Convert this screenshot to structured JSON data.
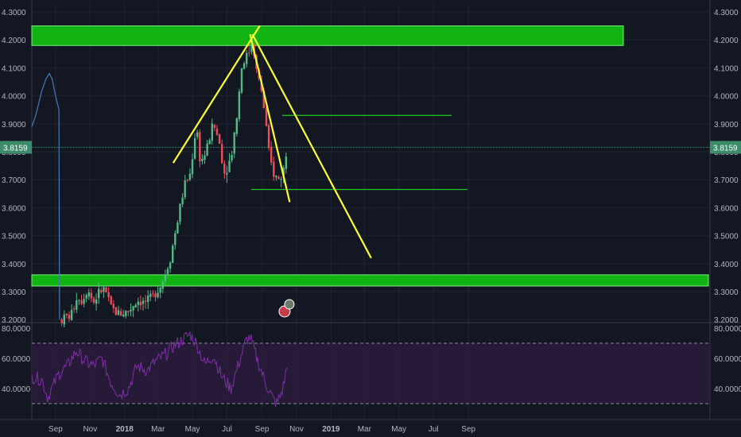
{
  "colors": {
    "background": "#131722",
    "grid": "#1f2433",
    "axis_text": "#b2b5be",
    "candle_up": "#53b987",
    "candle_down": "#eb4d5c",
    "zone_green": "#11c211",
    "trendline_yellow": "#ffff33",
    "level_green": "#21c821",
    "rsi_line": "#7e2fa6",
    "rsi_band": "#2b1b3c",
    "price_badge": "#3c8b6a",
    "blue_line": "#4a78b8"
  },
  "price_label": "3.8159",
  "x_axis_labels": [
    "Sep",
    "Nov",
    "2018",
    "Mar",
    "May",
    "Jul",
    "Sep",
    "Nov",
    "2019",
    "Mar",
    "May",
    "Jul",
    "Sep"
  ],
  "chart_data": [
    {
      "type": "candlestick",
      "y_ticks": [
        "4.3000",
        "4.2000",
        "4.1000",
        "4.0000",
        "3.9000",
        "3.8000",
        "3.7000",
        "3.6000",
        "3.5000",
        "3.4000",
        "3.3000",
        "3.2000"
      ],
      "ylim": [
        3.19,
        4.305
      ],
      "grid": true,
      "current_price": 3.8159,
      "zones": [
        {
          "name": "resistance-zone",
          "from": 4.18,
          "to": 4.25
        },
        {
          "name": "support-zone",
          "from": 3.32,
          "to": 3.36
        }
      ],
      "levels": [
        3.93,
        3.665
      ],
      "price_path": [
        {
          "x": "2017-10-10",
          "y": 3.2
        },
        {
          "x": "2017-10-28",
          "y": 3.22
        },
        {
          "x": "2017-11-05",
          "y": 3.28
        },
        {
          "x": "2017-11-15",
          "y": 3.27
        },
        {
          "x": "2017-11-25",
          "y": 3.31
        },
        {
          "x": "2017-12-05",
          "y": 3.26
        },
        {
          "x": "2017-12-15",
          "y": 3.3
        },
        {
          "x": "2017-12-25",
          "y": 3.31
        },
        {
          "x": "2018-01-05",
          "y": 3.24
        },
        {
          "x": "2018-01-20",
          "y": 3.22
        },
        {
          "x": "2018-02-05",
          "y": 3.23
        },
        {
          "x": "2018-02-20",
          "y": 3.27
        },
        {
          "x": "2018-03-05",
          "y": 3.26
        },
        {
          "x": "2018-03-20",
          "y": 3.28
        },
        {
          "x": "2018-04-05",
          "y": 3.33
        },
        {
          "x": "2018-04-20",
          "y": 3.42
        },
        {
          "x": "2018-05-05",
          "y": 3.58
        },
        {
          "x": "2018-05-15",
          "y": 3.68
        },
        {
          "x": "2018-05-25",
          "y": 3.72
        },
        {
          "x": "2018-06-05",
          "y": 3.9
        },
        {
          "x": "2018-06-12",
          "y": 3.76
        },
        {
          "x": "2018-06-22",
          "y": 3.8
        },
        {
          "x": "2018-07-05",
          "y": 3.9
        },
        {
          "x": "2018-07-15",
          "y": 3.84
        },
        {
          "x": "2018-07-25",
          "y": 3.72
        },
        {
          "x": "2018-08-05",
          "y": 3.78
        },
        {
          "x": "2018-08-15",
          "y": 3.92
        },
        {
          "x": "2018-08-25",
          "y": 4.12
        },
        {
          "x": "2018-09-05",
          "y": 4.15
        },
        {
          "x": "2018-09-12",
          "y": 4.2
        },
        {
          "x": "2018-09-20",
          "y": 4.08
        },
        {
          "x": "2018-09-28",
          "y": 4.02
        },
        {
          "x": "2018-10-05",
          "y": 3.92
        },
        {
          "x": "2018-10-12",
          "y": 3.78
        },
        {
          "x": "2018-10-20",
          "y": 3.72
        },
        {
          "x": "2018-10-28",
          "y": 3.7
        },
        {
          "x": "2018-11-05",
          "y": 3.72
        },
        {
          "x": "2018-11-12",
          "y": 3.82
        }
      ],
      "blue_line": [
        {
          "x": "2017-08-18",
          "y": 3.89
        },
        {
          "x": "2017-08-25",
          "y": 3.93
        },
        {
          "x": "2017-09-05",
          "y": 4.02
        },
        {
          "x": "2017-09-12",
          "y": 4.06
        },
        {
          "x": "2017-09-18",
          "y": 4.08
        },
        {
          "x": "2017-09-23",
          "y": 4.06
        },
        {
          "x": "2017-09-29",
          "y": 4.0
        },
        {
          "x": "2017-10-05",
          "y": 3.95
        },
        {
          "x": "2017-10-06",
          "y": 3.2
        }
      ],
      "trendlines": [
        {
          "from": {
            "x": "2018-04-25",
            "y": 3.76
          },
          "to": {
            "x": "2018-09-25",
            "y": 4.25
          }
        },
        {
          "from": {
            "x": "2018-09-08",
            "y": 4.22
          },
          "to": {
            "x": "2018-11-17",
            "y": 3.62
          }
        },
        {
          "from": {
            "x": "2018-09-12",
            "y": 4.22
          },
          "to": {
            "x": "2019-04-10",
            "y": 3.42
          }
        }
      ]
    },
    {
      "type": "line",
      "name": "RSI",
      "y_ticks": [
        "80.0000",
        "60.0000",
        "40.0000"
      ],
      "ylim": [
        26,
        82
      ],
      "band": [
        30,
        70
      ],
      "values": [
        {
          "x": "2017-08-18",
          "y": 48
        },
        {
          "x": "2017-09-05",
          "y": 46
        },
        {
          "x": "2017-09-15",
          "y": 34
        },
        {
          "x": "2017-10-05",
          "y": 50
        },
        {
          "x": "2017-10-20",
          "y": 55
        },
        {
          "x": "2017-11-05",
          "y": 65
        },
        {
          "x": "2017-11-20",
          "y": 58
        },
        {
          "x": "2017-12-05",
          "y": 55
        },
        {
          "x": "2017-12-20",
          "y": 60
        },
        {
          "x": "2018-01-05",
          "y": 44
        },
        {
          "x": "2018-01-20",
          "y": 36
        },
        {
          "x": "2018-02-05",
          "y": 40
        },
        {
          "x": "2018-02-20",
          "y": 55
        },
        {
          "x": "2018-03-10",
          "y": 52
        },
        {
          "x": "2018-03-25",
          "y": 58
        },
        {
          "x": "2018-04-10",
          "y": 62
        },
        {
          "x": "2018-04-25",
          "y": 68
        },
        {
          "x": "2018-05-10",
          "y": 72
        },
        {
          "x": "2018-05-25",
          "y": 76
        },
        {
          "x": "2018-06-05",
          "y": 70
        },
        {
          "x": "2018-06-20",
          "y": 56
        },
        {
          "x": "2018-07-05",
          "y": 62
        },
        {
          "x": "2018-07-20",
          "y": 48
        },
        {
          "x": "2018-08-05",
          "y": 40
        },
        {
          "x": "2018-08-20",
          "y": 58
        },
        {
          "x": "2018-09-01",
          "y": 72
        },
        {
          "x": "2018-09-08",
          "y": 74
        },
        {
          "x": "2018-09-20",
          "y": 60
        },
        {
          "x": "2018-10-05",
          "y": 44
        },
        {
          "x": "2018-10-20",
          "y": 32
        },
        {
          "x": "2018-10-26",
          "y": 30
        },
        {
          "x": "2018-11-05",
          "y": 40
        },
        {
          "x": "2018-11-12",
          "y": 54
        }
      ]
    }
  ]
}
